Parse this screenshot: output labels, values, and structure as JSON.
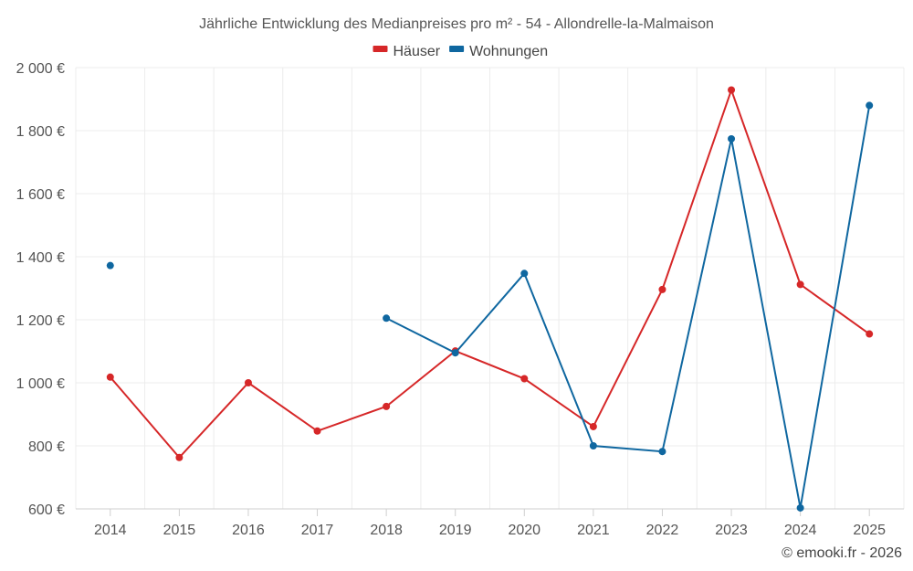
{
  "chart_data": {
    "type": "line",
    "title": "Jährliche Entwicklung des Medianpreises pro m² - 54 - Allondrelle-la-Malmaison",
    "categories": [
      "2014",
      "2015",
      "2016",
      "2017",
      "2018",
      "2019",
      "2020",
      "2021",
      "2022",
      "2023",
      "2024",
      "2025"
    ],
    "series": [
      {
        "name": "Häuser",
        "color": "#d62728",
        "values": [
          1018,
          763,
          1000,
          847,
          925,
          1101,
          1013,
          861,
          1296,
          1929,
          1312,
          1155
        ]
      },
      {
        "name": "Wohnungen",
        "color": "#0f67a0",
        "values": [
          1372,
          null,
          null,
          null,
          1205,
          1095,
          1347,
          800,
          782,
          1774,
          603,
          1880
        ]
      }
    ],
    "ylim": [
      600,
      2000
    ],
    "yticks": [
      600,
      800,
      1000,
      1200,
      1400,
      1600,
      1800,
      2000
    ],
    "ytick_labels": [
      "600 €",
      "800 €",
      "1 000 €",
      "1 200 €",
      "1 400 €",
      "1 600 €",
      "1 800 €",
      "2 000 €"
    ],
    "grid": true,
    "legend_position": "top-center"
  },
  "credit": "© emooki.fr - 2026"
}
